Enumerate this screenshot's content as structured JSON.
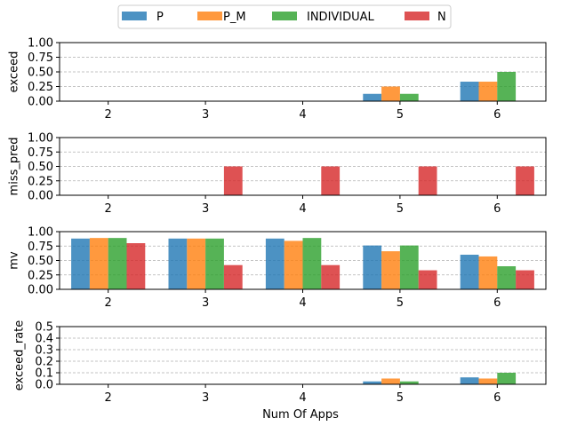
{
  "chart_data": {
    "type": "bar",
    "legend": {
      "placement": "top-center",
      "entries": [
        {
          "name": "P",
          "color": "#1f77b4"
        },
        {
          "name": "P_M",
          "color": "#ff7f0e"
        },
        {
          "name": "INDIVIDUAL",
          "color": "#2ca02c"
        },
        {
          "name": "N",
          "color": "#d62728"
        }
      ]
    },
    "categories": [
      "2",
      "3",
      "4",
      "5",
      "6"
    ],
    "xlabel": "Num Of Apps",
    "bar_alpha": 0.8,
    "grid": "y-dashed",
    "panels": [
      {
        "ylabel": "exceed",
        "ylim": [
          0,
          1.0
        ],
        "yticks": [
          "0.00",
          "0.25",
          "0.50",
          "0.75",
          "1.00"
        ],
        "ytick_values": [
          0,
          0.25,
          0.5,
          0.75,
          1.0
        ],
        "series": [
          {
            "name": "P",
            "values": [
              0,
              0,
              0,
              0.125,
              0.333
            ]
          },
          {
            "name": "P_M",
            "values": [
              0,
              0,
              0,
              0.25,
              0.333
            ]
          },
          {
            "name": "INDIVIDUAL",
            "values": [
              0,
              0,
              0,
              0.125,
              0.5
            ]
          },
          {
            "name": "N",
            "values": [
              0,
              0,
              0,
              0,
              0
            ]
          }
        ]
      },
      {
        "ylabel": "miss_pred",
        "ylim": [
          0,
          1.0
        ],
        "yticks": [
          "0.00",
          "0.25",
          "0.50",
          "0.75",
          "1.00"
        ],
        "ytick_values": [
          0,
          0.25,
          0.5,
          0.75,
          1.0
        ],
        "series": [
          {
            "name": "P",
            "values": [
              0,
              0,
              0,
              0,
              0
            ]
          },
          {
            "name": "P_M",
            "values": [
              0,
              0,
              0,
              0,
              0
            ]
          },
          {
            "name": "INDIVIDUAL",
            "values": [
              0,
              0,
              0,
              0,
              0
            ]
          },
          {
            "name": "N",
            "values": [
              0,
              0.5,
              0.5,
              0.5,
              0.5
            ]
          }
        ]
      },
      {
        "ylabel": "mv",
        "ylim": [
          0,
          1.0
        ],
        "yticks": [
          "0.00",
          "0.25",
          "0.50",
          "0.75",
          "1.00"
        ],
        "ytick_values": [
          0,
          0.25,
          0.5,
          0.75,
          1.0
        ],
        "series": [
          {
            "name": "P",
            "values": [
              0.88,
              0.88,
              0.88,
              0.76,
              0.6
            ]
          },
          {
            "name": "P_M",
            "values": [
              0.89,
              0.88,
              0.84,
              0.66,
              0.57
            ]
          },
          {
            "name": "INDIVIDUAL",
            "values": [
              0.89,
              0.88,
              0.89,
              0.76,
              0.4
            ]
          },
          {
            "name": "N",
            "values": [
              0.8,
              0.42,
              0.42,
              0.33,
              0.33
            ]
          }
        ]
      },
      {
        "ylabel": "exceed_rate",
        "ylim": [
          0,
          0.5
        ],
        "yticks": [
          "0.0",
          "0.1",
          "0.2",
          "0.3",
          "0.4",
          "0.5"
        ],
        "ytick_values": [
          0,
          0.1,
          0.2,
          0.3,
          0.4,
          0.5
        ],
        "series": [
          {
            "name": "P",
            "values": [
              0,
              0,
              0,
              0.025,
              0.06
            ]
          },
          {
            "name": "P_M",
            "values": [
              0,
              0,
              0,
              0.05,
              0.05
            ]
          },
          {
            "name": "INDIVIDUAL",
            "values": [
              0,
              0,
              0,
              0.025,
              0.1
            ]
          },
          {
            "name": "N",
            "values": [
              0,
              0,
              0,
              0,
              0
            ]
          }
        ]
      }
    ]
  }
}
